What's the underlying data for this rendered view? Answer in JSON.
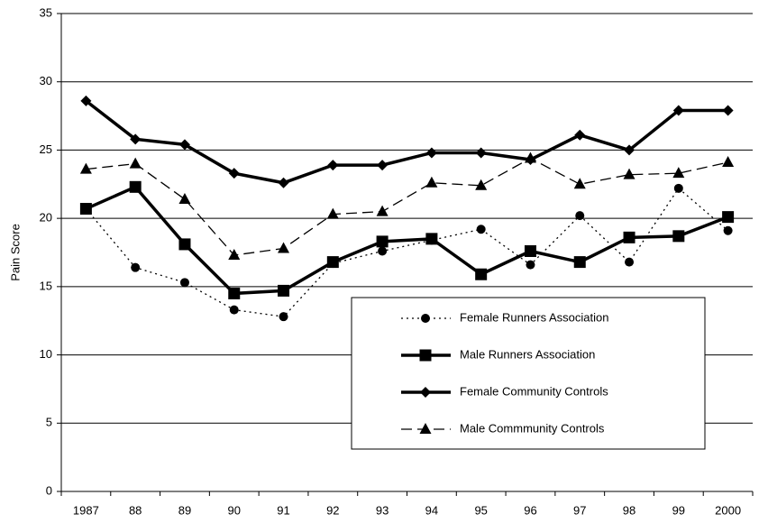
{
  "chart_data": {
    "type": "line",
    "y_label": "Pain Score",
    "categories": [
      "1987",
      "88",
      "89",
      "90",
      "91",
      "92",
      "93",
      "94",
      "95",
      "96",
      "97",
      "98",
      "99",
      "2000"
    ],
    "ylim": [
      0,
      35
    ],
    "yticks": [
      0,
      5,
      10,
      15,
      20,
      25,
      30,
      35
    ],
    "grid": true,
    "legend": "lower right",
    "series": [
      {
        "name": "Female Runners Association",
        "color": "#000000",
        "line": "dotted",
        "marker": "circle",
        "values": [
          20.7,
          16.4,
          15.3,
          13.3,
          12.8,
          16.7,
          17.6,
          18.4,
          19.2,
          16.6,
          20.2,
          16.8,
          22.2,
          19.1
        ]
      },
      {
        "name": "Male Runners Association",
        "color": "#000000",
        "line": "solid-thick",
        "marker": "square",
        "values": [
          20.7,
          22.3,
          18.1,
          14.5,
          14.7,
          16.8,
          18.3,
          18.5,
          15.9,
          17.6,
          16.8,
          18.6,
          18.7,
          20.1
        ]
      },
      {
        "name": "Female Community Controls",
        "color": "#000000",
        "line": "solid-thick",
        "marker": "diamond",
        "values": [
          28.6,
          25.8,
          25.4,
          23.3,
          22.6,
          23.9,
          23.9,
          24.8,
          24.8,
          24.3,
          26.1,
          25.0,
          27.9,
          27.9
        ]
      },
      {
        "name": "Male Commmunity Controls",
        "color": "#000000",
        "line": "dashed",
        "marker": "triangle",
        "values": [
          23.6,
          24.0,
          21.4,
          17.3,
          17.8,
          20.3,
          20.5,
          22.6,
          22.4,
          24.4,
          22.5,
          23.2,
          23.3,
          24.1
        ]
      }
    ]
  }
}
